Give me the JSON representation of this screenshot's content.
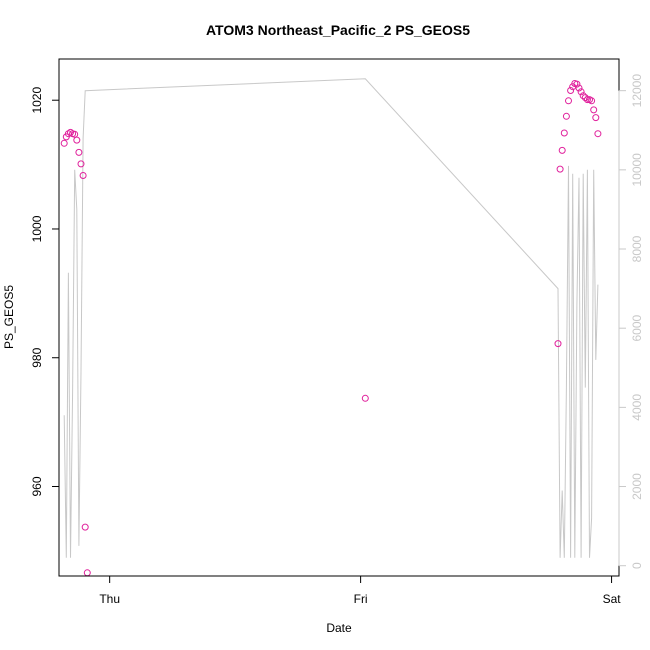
{
  "chart_data": {
    "type": "scatter",
    "title": "ATOM3 Northeast_Pacific_2 PS_GEOS5",
    "xlabel": "Date",
    "ylabel": "PS_GEOS5",
    "x_ticks": [
      {
        "label": "Thu",
        "value": 1.0
      },
      {
        "label": "Fri",
        "value": 2.0
      },
      {
        "label": "Sat",
        "value": 3.0
      }
    ],
    "xlim": [
      0.7981,
      3.0296
    ],
    "ylim": [
      946.1,
      1026.4
    ],
    "y_ticks": [
      960,
      980,
      1000,
      1020
    ],
    "secondary_ylim": [
      -260,
      12800
    ],
    "secondary_y_ticks": [
      0,
      2000,
      4000,
      6000,
      8000,
      10000,
      12000
    ],
    "colors": {
      "points": "#e0219c",
      "line": "#c8c8c8"
    },
    "grid": false,
    "series": [
      {
        "role": "points",
        "x": [
          0.8188,
          0.8272,
          0.8356,
          0.844,
          0.8523,
          0.8607,
          0.8691,
          0.8774,
          0.8858,
          0.8942,
          0.9025,
          0.9109,
          0.9235,
          2.0188,
          2.7866,
          2.7949,
          2.8033,
          2.8117,
          2.82,
          2.8284,
          2.8368,
          2.8452,
          2.8535,
          2.8619,
          2.8703,
          2.8786,
          2.887,
          2.8954,
          2.9038,
          2.9121,
          2.9205,
          2.9289,
          2.9372,
          2.9456,
          2.954,
          2.9623,
          2.9749
        ],
        "y": [
          1013.3,
          1014.3,
          1014.8,
          1015.0,
          1014.8,
          1014.7,
          1013.8,
          1011.9,
          1010.1,
          1008.3,
          953.7,
          946.6,
          null,
          973.7,
          982.2,
          1009.3,
          1012.2,
          1014.9,
          1017.5,
          1019.9,
          1021.5,
          1022.1,
          1022.6,
          1022.5,
          1021.9,
          1021.3,
          1020.7,
          1020.4,
          1020.1,
          1020.1,
          1019.9,
          1018.5,
          1017.3,
          1014.8,
          null,
          null,
          null
        ]
      },
      {
        "role": "line",
        "x": [
          0.8188,
          0.8272,
          0.8356,
          0.844,
          0.8523,
          0.8607,
          0.8691,
          0.8774,
          0.8858,
          0.8942,
          0.9025,
          0.9109,
          0.9235,
          2.0188,
          2.7866,
          2.7949,
          2.8033,
          2.8117,
          2.82,
          2.8284,
          2.8368,
          2.8452,
          2.8535,
          2.8619,
          2.8703,
          2.8786,
          2.887,
          2.8954,
          2.9038,
          2.9121,
          2.9205,
          2.9289,
          2.9372,
          2.9456,
          2.954,
          2.9623,
          2.9749
        ],
        "y": [
          3800,
          200,
          7400,
          200,
          4400,
          10000,
          9000,
          500,
          4900,
          10800,
          12000,
          null,
          null,
          12300,
          7000,
          200,
          1900,
          200,
          4500,
          10100,
          200,
          9900,
          200,
          6600,
          9800,
          200,
          9900,
          4500,
          10000,
          200,
          1200,
          10000,
          5200,
          7100,
          null,
          null,
          null
        ]
      }
    ]
  }
}
